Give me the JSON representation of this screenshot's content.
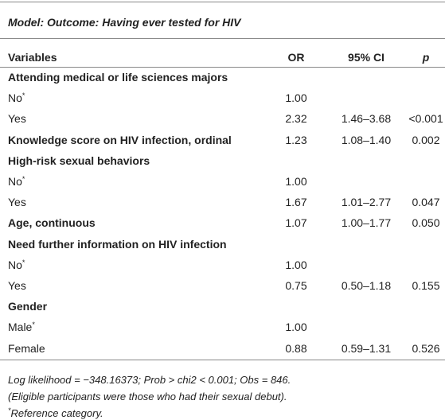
{
  "title": "Model: Outcome: Having ever tested for HIV",
  "header": {
    "variable": "Variables",
    "or": "OR",
    "ci": "95% CI",
    "p": "p"
  },
  "rows": [
    {
      "variable": "Attending medical or life sciences majors",
      "bold": true
    },
    {
      "variable": "No",
      "mark": "*",
      "or": "1.00"
    },
    {
      "variable": "Yes",
      "or": "2.32",
      "ci": "1.46–3.68",
      "p": "<0.001"
    },
    {
      "variable": "Knowledge score on HIV infection, ordinal",
      "bold": true,
      "or": "1.23",
      "ci": "1.08–1.40",
      "p": "0.002"
    },
    {
      "variable": "High-risk sexual behaviors",
      "bold": true
    },
    {
      "variable": "No",
      "mark": "*",
      "or": "1.00"
    },
    {
      "variable": "Yes",
      "or": "1.67",
      "ci": "1.01–2.77",
      "p": "0.047"
    },
    {
      "variable": "Age, continuous",
      "bold": true,
      "or": "1.07",
      "ci": "1.00–1.77",
      "p": "0.050"
    },
    {
      "variable": "Need further information on HIV infection",
      "bold": true
    },
    {
      "variable": "No",
      "mark": "*",
      "or": "1.00"
    },
    {
      "variable": "Yes",
      "or": "0.75",
      "ci": "0.50–1.18",
      "p": "0.155"
    },
    {
      "variable": "Gender",
      "bold": true
    },
    {
      "variable": "Male",
      "mark": "*",
      "or": "1.00"
    },
    {
      "variable": "Female",
      "or": "0.88",
      "ci": "0.59–1.31",
      "p": "0.526"
    }
  ],
  "footnotes": [
    {
      "text": "Log likelihood = −348.16373; Prob > chi2 < 0.001; Obs = 846."
    },
    {
      "text": "(Eligible participants were those who had their sexual debut)."
    },
    {
      "mark": "*",
      "text": "Reference category."
    }
  ]
}
